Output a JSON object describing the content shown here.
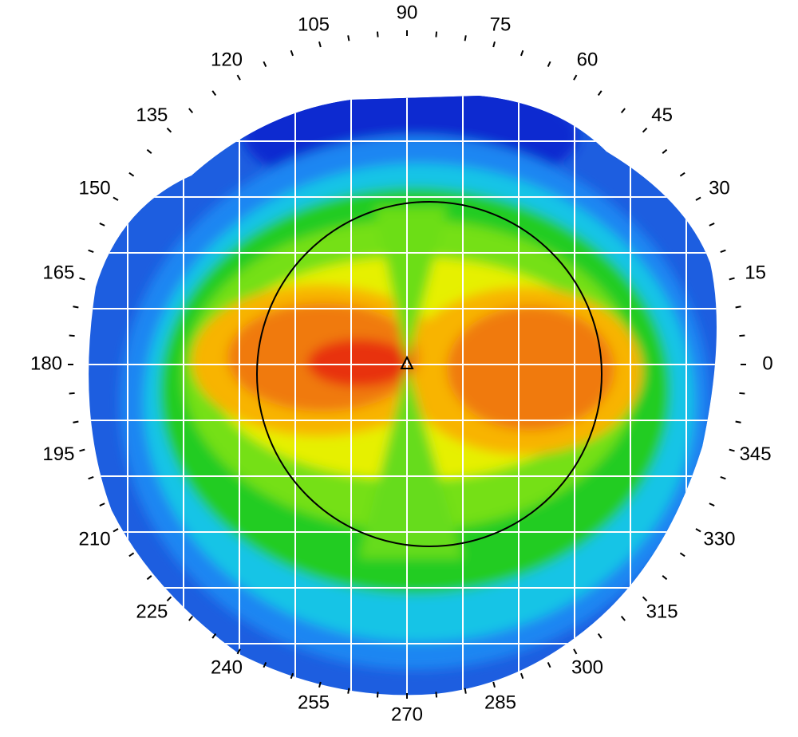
{
  "angle_labels": [
    0,
    15,
    30,
    45,
    60,
    75,
    90,
    105,
    120,
    135,
    150,
    165,
    180,
    195,
    210,
    225,
    240,
    255,
    270,
    285,
    300,
    315,
    330,
    345
  ]
}
